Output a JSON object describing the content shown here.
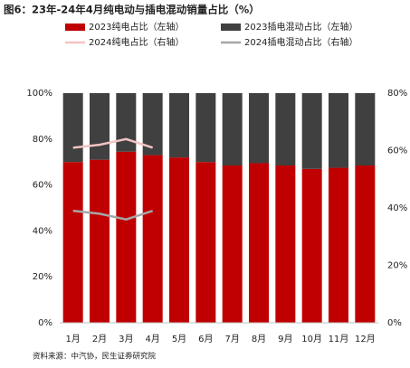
{
  "chart_data": {
    "type": "stacked_bar_line",
    "title": "图6：23年-24年4月纯电动与插电混动销量占比（%）",
    "source": "资料来源：中汽协，民生证券研究院",
    "categories": [
      "1月",
      "2月",
      "3月",
      "4月",
      "5月",
      "6月",
      "7月",
      "8月",
      "9月",
      "10月",
      "11月",
      "12月"
    ],
    "series": [
      {
        "name": "2023纯电占比（左轴）",
        "color": "#c00000",
        "kind": "bar",
        "values": [
          70,
          71,
          74.5,
          73,
          72,
          70,
          68.5,
          69.5,
          68.5,
          67,
          67.5,
          68.5
        ]
      },
      {
        "name": "2023插电混动占比（左轴）",
        "color": "#404040",
        "kind": "bar",
        "values": [
          30,
          29,
          25.5,
          27,
          28,
          30,
          31.5,
          30.5,
          31.5,
          33,
          32.5,
          31.5
        ]
      },
      {
        "name": "2024纯电占比（右轴）",
        "color": "#f2c4c4",
        "kind": "line",
        "axis": "y2",
        "values": [
          61,
          62,
          64,
          61,
          null,
          null,
          null,
          null,
          null,
          null,
          null,
          null
        ]
      },
      {
        "name": "2024插电混动占比（右轴）",
        "color": "#a6a6a6",
        "kind": "line",
        "axis": "y2",
        "values": [
          39,
          38,
          36,
          39,
          null,
          null,
          null,
          null,
          null,
          null,
          null,
          null
        ]
      }
    ],
    "ylim": [
      0,
      100
    ],
    "yticks": [
      {
        "value": 0,
        "label": "0%"
      },
      {
        "value": 20,
        "label": "20%"
      },
      {
        "value": 40,
        "label": "40%"
      },
      {
        "value": 60,
        "label": "60%"
      },
      {
        "value": 80,
        "label": "80%"
      },
      {
        "value": 100,
        "label": "100%"
      }
    ],
    "y2lim": [
      0,
      80
    ],
    "y2ticks": [
      {
        "value": 0,
        "label": "0%"
      },
      {
        "value": 20,
        "label": "20%"
      },
      {
        "value": 40,
        "label": "40%"
      },
      {
        "value": 60,
        "label": "60%"
      },
      {
        "value": 80,
        "label": "80%"
      }
    ]
  }
}
